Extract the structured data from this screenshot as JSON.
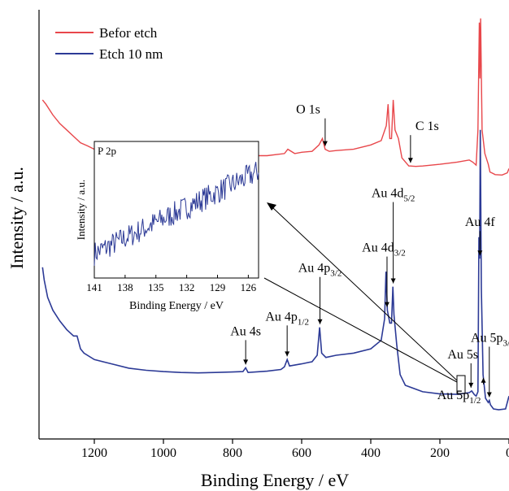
{
  "chart_data": {
    "type": "line",
    "xlabel": "Binding Energy / eV",
    "ylabel": "Intensity / a.u.",
    "x_reversed": true,
    "xlim": [
      1360,
      0
    ],
    "x_ticks": [
      "1200",
      "1000",
      "800",
      "600",
      "400",
      "200",
      "0"
    ],
    "x_tick_values": [
      1200,
      1000,
      800,
      600,
      400,
      200,
      0
    ],
    "legend_position": "top-left",
    "series": [
      {
        "name": "Befor etch",
        "color": "#e8474b",
        "points": [
          [
            1350,
            0.79
          ],
          [
            1340,
            0.78
          ],
          [
            1320,
            0.755
          ],
          [
            1300,
            0.735
          ],
          [
            1280,
            0.72
          ],
          [
            1260,
            0.705
          ],
          [
            1240,
            0.69
          ],
          [
            1220,
            0.683
          ],
          [
            1200,
            0.675
          ],
          [
            1150,
            0.665
          ],
          [
            1100,
            0.66
          ],
          [
            1050,
            0.658
          ],
          [
            1000,
            0.656
          ],
          [
            950,
            0.654
          ],
          [
            900,
            0.655
          ],
          [
            850,
            0.656
          ],
          [
            800,
            0.657
          ],
          [
            760,
            0.66
          ],
          [
            700,
            0.66
          ],
          [
            650,
            0.665
          ],
          [
            640,
            0.675
          ],
          [
            620,
            0.665
          ],
          [
            600,
            0.668
          ],
          [
            570,
            0.67
          ],
          [
            550,
            0.685
          ],
          [
            540,
            0.7
          ],
          [
            532,
            0.675
          ],
          [
            520,
            0.67
          ],
          [
            500,
            0.672
          ],
          [
            450,
            0.675
          ],
          [
            400,
            0.685
          ],
          [
            370,
            0.695
          ],
          [
            355,
            0.73
          ],
          [
            350,
            0.78
          ],
          [
            345,
            0.7
          ],
          [
            340,
            0.7
          ],
          [
            335,
            0.79
          ],
          [
            330,
            0.72
          ],
          [
            320,
            0.7
          ],
          [
            310,
            0.655
          ],
          [
            290,
            0.636
          ],
          [
            285,
            0.636
          ],
          [
            270,
            0.635
          ],
          [
            250,
            0.636
          ],
          [
            200,
            0.64
          ],
          [
            150,
            0.645
          ],
          [
            115,
            0.65
          ],
          [
            105,
            0.645
          ],
          [
            95,
            0.638
          ],
          [
            90,
            0.72
          ],
          [
            86,
            0.97
          ],
          [
            84,
            0.84
          ],
          [
            82,
            0.98
          ],
          [
            78,
            0.72
          ],
          [
            70,
            0.665
          ],
          [
            60,
            0.64
          ],
          [
            55,
            0.622
          ],
          [
            50,
            0.62
          ],
          [
            40,
            0.616
          ],
          [
            20,
            0.615
          ],
          [
            5,
            0.62
          ],
          [
            0,
            0.63
          ]
        ],
        "annotations": [
          {
            "text": "O 1s",
            "x": 532
          },
          {
            "text": "C 1s",
            "x": 285
          }
        ]
      },
      {
        "name": "Etch 10 nm",
        "color": "#2c3a96",
        "points": [
          [
            1350,
            0.4
          ],
          [
            1345,
            0.37
          ],
          [
            1335,
            0.33
          ],
          [
            1320,
            0.3
          ],
          [
            1300,
            0.275
          ],
          [
            1280,
            0.255
          ],
          [
            1260,
            0.24
          ],
          [
            1250,
            0.24
          ],
          [
            1245,
            0.225
          ],
          [
            1240,
            0.21
          ],
          [
            1230,
            0.2
          ],
          [
            1200,
            0.185
          ],
          [
            1150,
            0.175
          ],
          [
            1100,
            0.165
          ],
          [
            1050,
            0.16
          ],
          [
            1000,
            0.157
          ],
          [
            950,
            0.155
          ],
          [
            900,
            0.154
          ],
          [
            850,
            0.155
          ],
          [
            800,
            0.156
          ],
          [
            770,
            0.157
          ],
          [
            762,
            0.166
          ],
          [
            755,
            0.155
          ],
          [
            700,
            0.158
          ],
          [
            660,
            0.162
          ],
          [
            650,
            0.168
          ],
          [
            642,
            0.185
          ],
          [
            635,
            0.17
          ],
          [
            600,
            0.175
          ],
          [
            570,
            0.18
          ],
          [
            555,
            0.195
          ],
          [
            548,
            0.26
          ],
          [
            542,
            0.2
          ],
          [
            530,
            0.19
          ],
          [
            500,
            0.195
          ],
          [
            450,
            0.2
          ],
          [
            400,
            0.21
          ],
          [
            370,
            0.23
          ],
          [
            360,
            0.28
          ],
          [
            356,
            0.39
          ],
          [
            352,
            0.3
          ],
          [
            345,
            0.27
          ],
          [
            340,
            0.27
          ],
          [
            336,
            0.355
          ],
          [
            333,
            0.29
          ],
          [
            325,
            0.22
          ],
          [
            315,
            0.15
          ],
          [
            300,
            0.125
          ],
          [
            250,
            0.11
          ],
          [
            200,
            0.105
          ],
          [
            150,
            0.104
          ],
          [
            115,
            0.108
          ],
          [
            108,
            0.112
          ],
          [
            100,
            0.103
          ],
          [
            95,
            0.1
          ],
          [
            90,
            0.11
          ],
          [
            87,
            0.47
          ],
          [
            85,
            0.42
          ],
          [
            83,
            0.72
          ],
          [
            80,
            0.35
          ],
          [
            75,
            0.15
          ],
          [
            68,
            0.095
          ],
          [
            60,
            0.085
          ],
          [
            57,
            0.09
          ],
          [
            54,
            0.08
          ],
          [
            45,
            0.07
          ],
          [
            30,
            0.068
          ],
          [
            10,
            0.07
          ],
          [
            0,
            0.1
          ]
        ],
        "annotations": [
          {
            "text": "Au 4s",
            "x": 762
          },
          {
            "text": "Au 4p",
            "sub": "1/2",
            "x": 642
          },
          {
            "text": "Au 4p",
            "sub": "3/2",
            "x": 547
          },
          {
            "text": "Au 4d",
            "sub": "3/2",
            "x": 353
          },
          {
            "text": "Au 4d",
            "sub": "5/2",
            "x": 335
          },
          {
            "text": "Au 4f",
            "x": 84
          },
          {
            "text": "Au 5s",
            "x": 110
          },
          {
            "text": "Au 5p",
            "sub": "3/2",
            "x": 57
          },
          {
            "text": "Au 5p",
            "sub": "1/2",
            "x": 74
          }
        ]
      }
    ],
    "inset": {
      "title": "P 2p",
      "xlabel": "Binding Energy / eV",
      "ylabel": "Intensity / a.u.",
      "xlim": [
        141,
        125
      ],
      "x_ticks": [
        "141",
        "138",
        "135",
        "132",
        "129",
        "126"
      ],
      "x_tick_values": [
        141,
        138,
        135,
        132,
        129,
        126
      ],
      "color": "#2c3a96",
      "trend_start": [
        141,
        0.18
      ],
      "trend_end": [
        125,
        0.78
      ],
      "noise_amplitude": 0.09
    }
  }
}
